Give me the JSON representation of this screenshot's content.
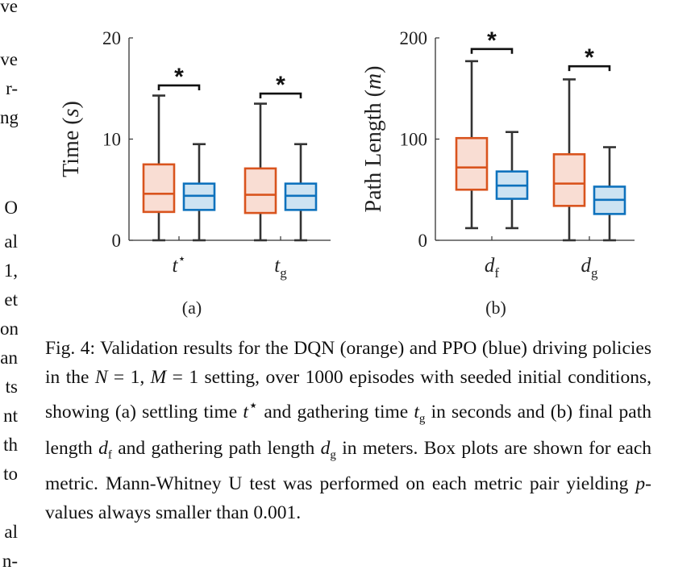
{
  "chart_data": [
    {
      "type": "box",
      "panel_label": "(a)",
      "ylabel": "Time (s)",
      "ylabel_parts": [
        "Time (",
        "s",
        ")"
      ],
      "ylim": [
        0,
        20
      ],
      "yticks": [
        "0",
        "10",
        "20"
      ],
      "categories": [
        {
          "var": "t",
          "sup": "⋆"
        },
        {
          "var": "t",
          "sub": "g"
        }
      ],
      "series": [
        {
          "color_hint": "orange",
          "stroke": "#D9541E",
          "fill": "#F9DDD3",
          "boxes": [
            {
              "min": 0,
              "q1": 2.8,
              "median": 4.6,
              "q3": 7.5,
              "max": 14.3
            },
            {
              "min": 0,
              "q1": 2.7,
              "median": 4.5,
              "q3": 7.1,
              "max": 13.5
            }
          ]
        },
        {
          "color_hint": "blue",
          "stroke": "#0E72BD",
          "fill": "#CDE3F2",
          "boxes": [
            {
              "min": 0,
              "q1": 3.0,
              "median": 4.4,
              "q3": 5.6,
              "max": 9.5
            },
            {
              "min": 0,
              "q1": 3.0,
              "median": 4.4,
              "q3": 5.6,
              "max": 9.5
            }
          ]
        }
      ],
      "significance": [
        {
          "category": 0,
          "label": "*",
          "y": 15.3
        },
        {
          "category": 1,
          "label": "*",
          "y": 14.5
        }
      ]
    },
    {
      "type": "box",
      "panel_label": "(b)",
      "ylabel": "Path Length (m)",
      "ylabel_parts": [
        "Path Length (",
        "m",
        ")"
      ],
      "ylim": [
        0,
        200
      ],
      "yticks": [
        "0",
        "100",
        "200"
      ],
      "categories": [
        {
          "var": "d",
          "sub": "f"
        },
        {
          "var": "d",
          "sub": "g"
        }
      ],
      "series": [
        {
          "color_hint": "orange",
          "stroke": "#D9541E",
          "fill": "#F9DDD3",
          "boxes": [
            {
              "min": 12,
              "q1": 50,
              "median": 72,
              "q3": 101,
              "max": 177
            },
            {
              "min": 0,
              "q1": 34,
              "median": 56,
              "q3": 85,
              "max": 159
            }
          ]
        },
        {
          "color_hint": "blue",
          "stroke": "#0E72BD",
          "fill": "#CDE3F2",
          "boxes": [
            {
              "min": 12,
              "q1": 41,
              "median": 54,
              "q3": 68,
              "max": 107
            },
            {
              "min": 0,
              "q1": 26,
              "median": 40,
              "q3": 53,
              "max": 92
            }
          ]
        }
      ],
      "significance": [
        {
          "category": 0,
          "label": "*",
          "y": 189
        },
        {
          "category": 1,
          "label": "*",
          "y": 172
        }
      ]
    }
  ],
  "caption": {
    "prefix": "Fig. 4: Validation results for the DQN (orange) and PPO (blue) driving policies in the ",
    "N": "N",
    "eq1": " = 1, ",
    "M": "M",
    "eq2": " = 1 setting, over 1000 episodes with seeded initial conditions, showing (a) settling time ",
    "t1": "t",
    "t1_sup": "⋆",
    "mid1": " and gathering time ",
    "t2": "t",
    "t2_sub": "g",
    "mid2": " in seconds and (b) final path length ",
    "d1": "d",
    "d1_sub": "f",
    "mid3": " and gathering path length ",
    "d2": "d",
    "d2_sub": "g",
    "mid4": " in meters. Box plots are shown for each metric. Mann-Whitney U test was performed on each metric pair yielding ",
    "p": "p",
    "suffix": "-values always smaller than 0.001."
  },
  "edge_text_left": [
    "ve",
    "ve",
    "r-",
    "ng",
    "O",
    "al",
    "1,",
    "et",
    "on",
    "an",
    "ts",
    "nt",
    "th",
    "to",
    "al",
    "n-"
  ],
  "edge_text_right": []
}
